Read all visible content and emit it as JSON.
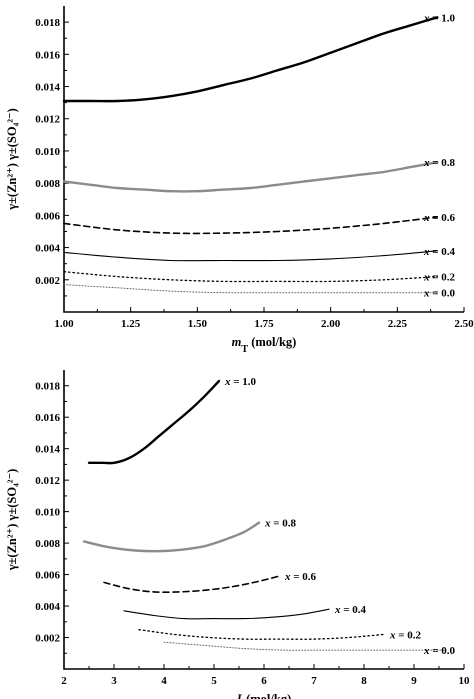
{
  "chart_data": [
    {
      "type": "line",
      "xlabel_main": "m",
      "xlabel_sub": "T",
      "xlabel_rest": " (mol/kg)",
      "ylabel_text": "γ±(Zn²⁺) γ±(SO₄²⁻)",
      "xlim": [
        1.0,
        2.5
      ],
      "ylim": [
        0.0,
        0.019
      ],
      "xticks": [
        "1.00",
        "1.25",
        "1.50",
        "1.75",
        "2.00",
        "2.25",
        "2.50"
      ],
      "yticks": [
        "0.002",
        "0.004",
        "0.006",
        "0.008",
        "0.010",
        "0.012",
        "0.014",
        "0.016",
        "0.018"
      ],
      "series": [
        {
          "name": "x = 1.0",
          "style": "solid-thick",
          "color": "#000000",
          "x": [
            1.0,
            1.1,
            1.2,
            1.3,
            1.4,
            1.5,
            1.6,
            1.7,
            1.8,
            1.9,
            2.0,
            2.1,
            2.2,
            2.3,
            2.4
          ],
          "y": [
            0.0131,
            0.0131,
            0.0131,
            0.0132,
            0.0134,
            0.0137,
            0.0141,
            0.0145,
            0.015,
            0.0155,
            0.0161,
            0.0167,
            0.0173,
            0.0178,
            0.0183
          ]
        },
        {
          "name": "x = 0.8",
          "style": "solid-thick",
          "color": "#8c8c8c",
          "x": [
            1.0,
            1.1,
            1.2,
            1.3,
            1.4,
            1.5,
            1.6,
            1.7,
            1.8,
            1.9,
            2.0,
            2.1,
            2.2,
            2.3,
            2.4
          ],
          "y": [
            0.0081,
            0.0079,
            0.0077,
            0.0076,
            0.0075,
            0.0075,
            0.0076,
            0.0077,
            0.0079,
            0.0081,
            0.0083,
            0.0085,
            0.0087,
            0.009,
            0.0093
          ]
        },
        {
          "name": "x = 0.6",
          "style": "dashed",
          "color": "#000000",
          "x": [
            1.0,
            1.2,
            1.4,
            1.6,
            1.8,
            2.0,
            2.2,
            2.4
          ],
          "y": [
            0.0055,
            0.0051,
            0.0049,
            0.0049,
            0.005,
            0.0052,
            0.0055,
            0.0059
          ]
        },
        {
          "name": "x = 0.4",
          "style": "solid-thin",
          "color": "#000000",
          "x": [
            1.0,
            1.2,
            1.4,
            1.6,
            1.8,
            2.0,
            2.2,
            2.4
          ],
          "y": [
            0.0037,
            0.0034,
            0.0032,
            0.0032,
            0.0032,
            0.0033,
            0.0035,
            0.0038
          ]
        },
        {
          "name": "x = 0.2",
          "style": "dotted",
          "color": "#000000",
          "x": [
            1.0,
            1.2,
            1.4,
            1.6,
            1.8,
            2.0,
            2.2,
            2.4
          ],
          "y": [
            0.0025,
            0.0022,
            0.002,
            0.0019,
            0.0019,
            0.0019,
            0.002,
            0.0022
          ]
        },
        {
          "name": "x = 0.0",
          "style": "dotted-fine",
          "color": "#666666",
          "x": [
            1.0,
            1.2,
            1.4,
            1.6,
            1.8,
            2.0,
            2.2,
            2.4
          ],
          "y": [
            0.0017,
            0.0015,
            0.0013,
            0.0012,
            0.0012,
            0.0012,
            0.0012,
            0.0012
          ]
        }
      ]
    },
    {
      "type": "line",
      "xlabel_main": "I",
      "xlabel_sub": "e",
      "xlabel_rest": "(mol/kg)",
      "ylabel_text": "γ±(Zn²⁺) γ±(SO₄²⁻)",
      "xlim": [
        2,
        10
      ],
      "ylim": [
        0.0,
        0.019
      ],
      "xticks": [
        "2",
        "3",
        "4",
        "5",
        "6",
        "7",
        "8",
        "9",
        "10"
      ],
      "yticks": [
        "0.002",
        "0.004",
        "0.006",
        "0.008",
        "0.010",
        "0.012",
        "0.014",
        "0.016",
        "0.018"
      ],
      "series": [
        {
          "name": "x = 1.0",
          "style": "solid-thick",
          "color": "#000000",
          "x": [
            2.5,
            2.75,
            3.0,
            3.3,
            3.6,
            3.9,
            4.2,
            4.5,
            4.8,
            5.1
          ],
          "y": [
            0.0131,
            0.0131,
            0.0131,
            0.0134,
            0.014,
            0.0148,
            0.0156,
            0.0164,
            0.0173,
            0.0183
          ]
        },
        {
          "name": "x = 0.8",
          "style": "solid-thick",
          "color": "#8c8c8c",
          "x": [
            2.4,
            2.8,
            3.2,
            3.6,
            4.0,
            4.4,
            4.8,
            5.2,
            5.6,
            5.9
          ],
          "y": [
            0.0081,
            0.0078,
            0.0076,
            0.0075,
            0.0075,
            0.0076,
            0.0078,
            0.0082,
            0.0087,
            0.0093
          ]
        },
        {
          "name": "x = 0.6",
          "style": "dashed",
          "color": "#000000",
          "x": [
            2.8,
            3.3,
            3.8,
            4.3,
            4.8,
            5.3,
            5.8,
            6.3
          ],
          "y": [
            0.0055,
            0.0051,
            0.0049,
            0.0049,
            0.005,
            0.0052,
            0.0055,
            0.0059
          ]
        },
        {
          "name": "x = 0.4",
          "style": "solid-thin",
          "color": "#000000",
          "x": [
            3.2,
            3.8,
            4.4,
            5.0,
            5.6,
            6.2,
            6.8,
            7.3
          ],
          "y": [
            0.0037,
            0.0034,
            0.0032,
            0.0032,
            0.0032,
            0.0033,
            0.0035,
            0.0038
          ]
        },
        {
          "name": "x = 0.2",
          "style": "dotted",
          "color": "#000000",
          "x": [
            3.5,
            4.2,
            4.9,
            5.6,
            6.3,
            7.0,
            7.7,
            8.4
          ],
          "y": [
            0.0025,
            0.0022,
            0.002,
            0.0019,
            0.0019,
            0.0019,
            0.002,
            0.0022
          ]
        },
        {
          "name": "x = 0.0",
          "style": "dotted-fine",
          "color": "#666666",
          "x": [
            4.0,
            4.8,
            5.6,
            6.4,
            7.2,
            8.0,
            8.8,
            9.6
          ],
          "y": [
            0.0017,
            0.0015,
            0.0013,
            0.0012,
            0.0012,
            0.0012,
            0.0012,
            0.0012
          ]
        }
      ]
    }
  ]
}
